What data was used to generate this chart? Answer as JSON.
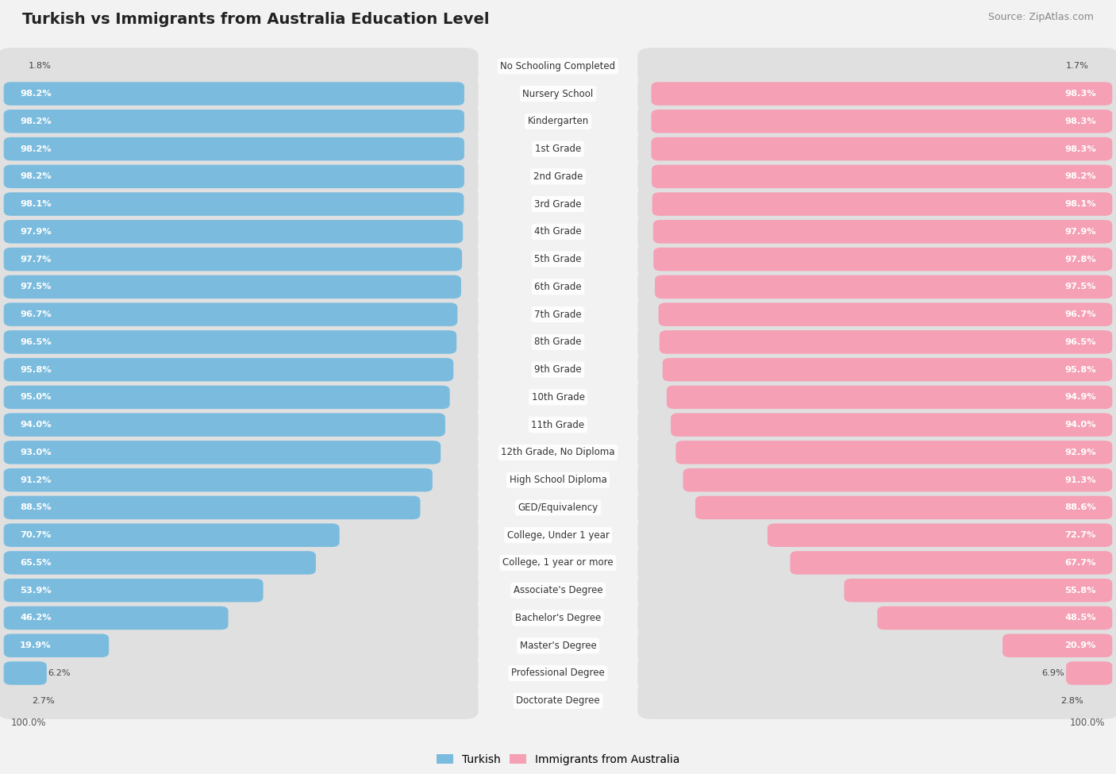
{
  "title": "Turkish vs Immigrants from Australia Education Level",
  "source": "Source: ZipAtlas.com",
  "categories": [
    "No Schooling Completed",
    "Nursery School",
    "Kindergarten",
    "1st Grade",
    "2nd Grade",
    "3rd Grade",
    "4th Grade",
    "5th Grade",
    "6th Grade",
    "7th Grade",
    "8th Grade",
    "9th Grade",
    "10th Grade",
    "11th Grade",
    "12th Grade, No Diploma",
    "High School Diploma",
    "GED/Equivalency",
    "College, Under 1 year",
    "College, 1 year or more",
    "Associate's Degree",
    "Bachelor's Degree",
    "Master's Degree",
    "Professional Degree",
    "Doctorate Degree"
  ],
  "turkish": [
    1.8,
    98.2,
    98.2,
    98.2,
    98.2,
    98.1,
    97.9,
    97.7,
    97.5,
    96.7,
    96.5,
    95.8,
    95.0,
    94.0,
    93.0,
    91.2,
    88.5,
    70.7,
    65.5,
    53.9,
    46.2,
    19.9,
    6.2,
    2.7
  ],
  "australia": [
    1.7,
    98.3,
    98.3,
    98.3,
    98.2,
    98.1,
    97.9,
    97.8,
    97.5,
    96.7,
    96.5,
    95.8,
    94.9,
    94.0,
    92.9,
    91.3,
    88.6,
    72.7,
    67.7,
    55.8,
    48.5,
    20.9,
    6.9,
    2.8
  ],
  "turkish_color": "#7bbcde",
  "australia_color": "#f5a0b5",
  "background_color": "#f2f2f2",
  "bar_bg_color": "#e0e0e0",
  "legend_turkish": "Turkish",
  "legend_australia": "Immigrants from Australia",
  "left_label": "100.0%",
  "right_label": "100.0%",
  "title_fontsize": 14,
  "source_fontsize": 9,
  "label_fontsize": 8.5,
  "value_fontsize": 8.2
}
